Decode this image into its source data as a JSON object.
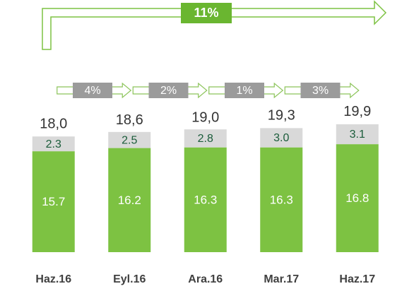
{
  "chart_data": {
    "type": "bar",
    "stacked": true,
    "categories": [
      "Haz.16",
      "Eyl.16",
      "Ara.16",
      "Mar.17",
      "Haz.17"
    ],
    "series": [
      {
        "color": "#7dc242",
        "values": [
          15.7,
          16.2,
          16.3,
          16.3,
          16.8
        ]
      },
      {
        "color": "#d9d9d9",
        "values": [
          2.3,
          2.5,
          2.8,
          3.0,
          3.1
        ],
        "value_labels": [
          "2.3",
          "2.5",
          "2.8",
          "3.0",
          "3.1"
        ]
      }
    ],
    "totals": [
      18.0,
      18.6,
      19.0,
      19.3,
      19.9
    ],
    "total_labels": [
      "18,0",
      "18,6",
      "19,0",
      "19,3",
      "19,9"
    ],
    "growth_labels": [
      "4%",
      "2%",
      "1%",
      "3%"
    ],
    "overall_growth": "11%"
  }
}
